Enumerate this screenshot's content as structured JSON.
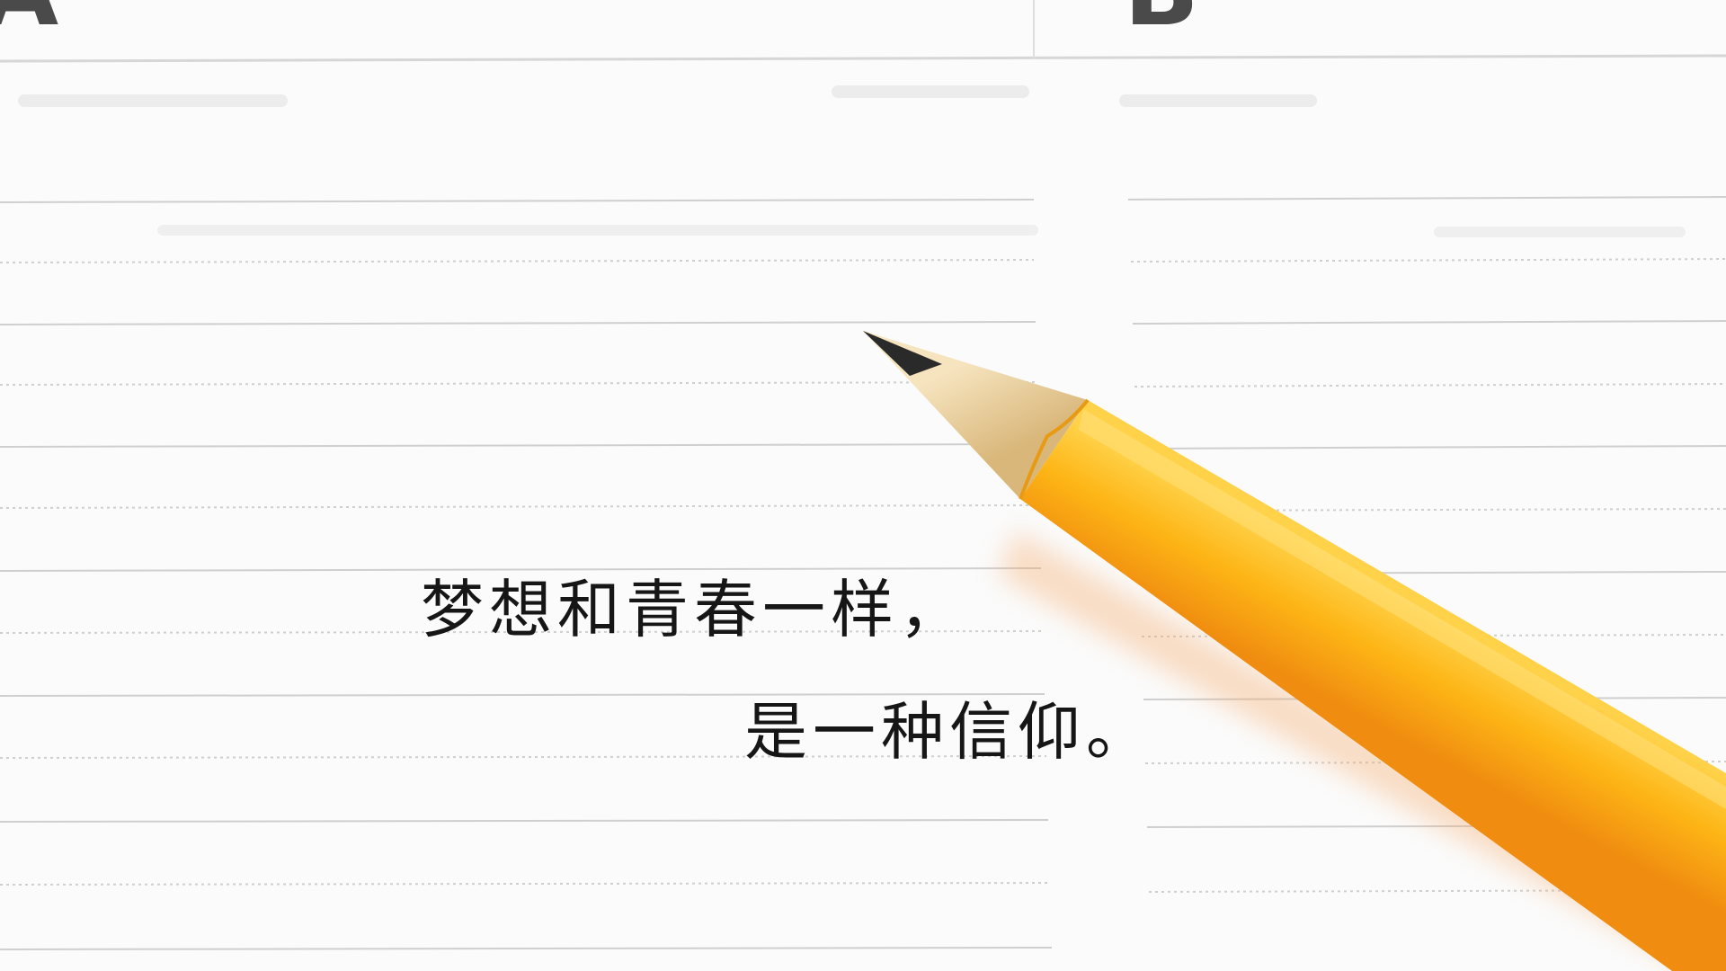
{
  "notebook": {
    "section_letters": [
      "A",
      "B"
    ]
  },
  "quote": {
    "line1": "梦想和青春一样，",
    "line2": "是一种信仰。"
  },
  "colors": {
    "paper": "#fbfbfb",
    "ruled_line": "#cfcfcf",
    "pencil_body": "#fdb515",
    "pencil_edge": "#f08c10",
    "pencil_wood": "#e9cf9c",
    "graphite": "#2a2a2a",
    "text": "#161616"
  }
}
